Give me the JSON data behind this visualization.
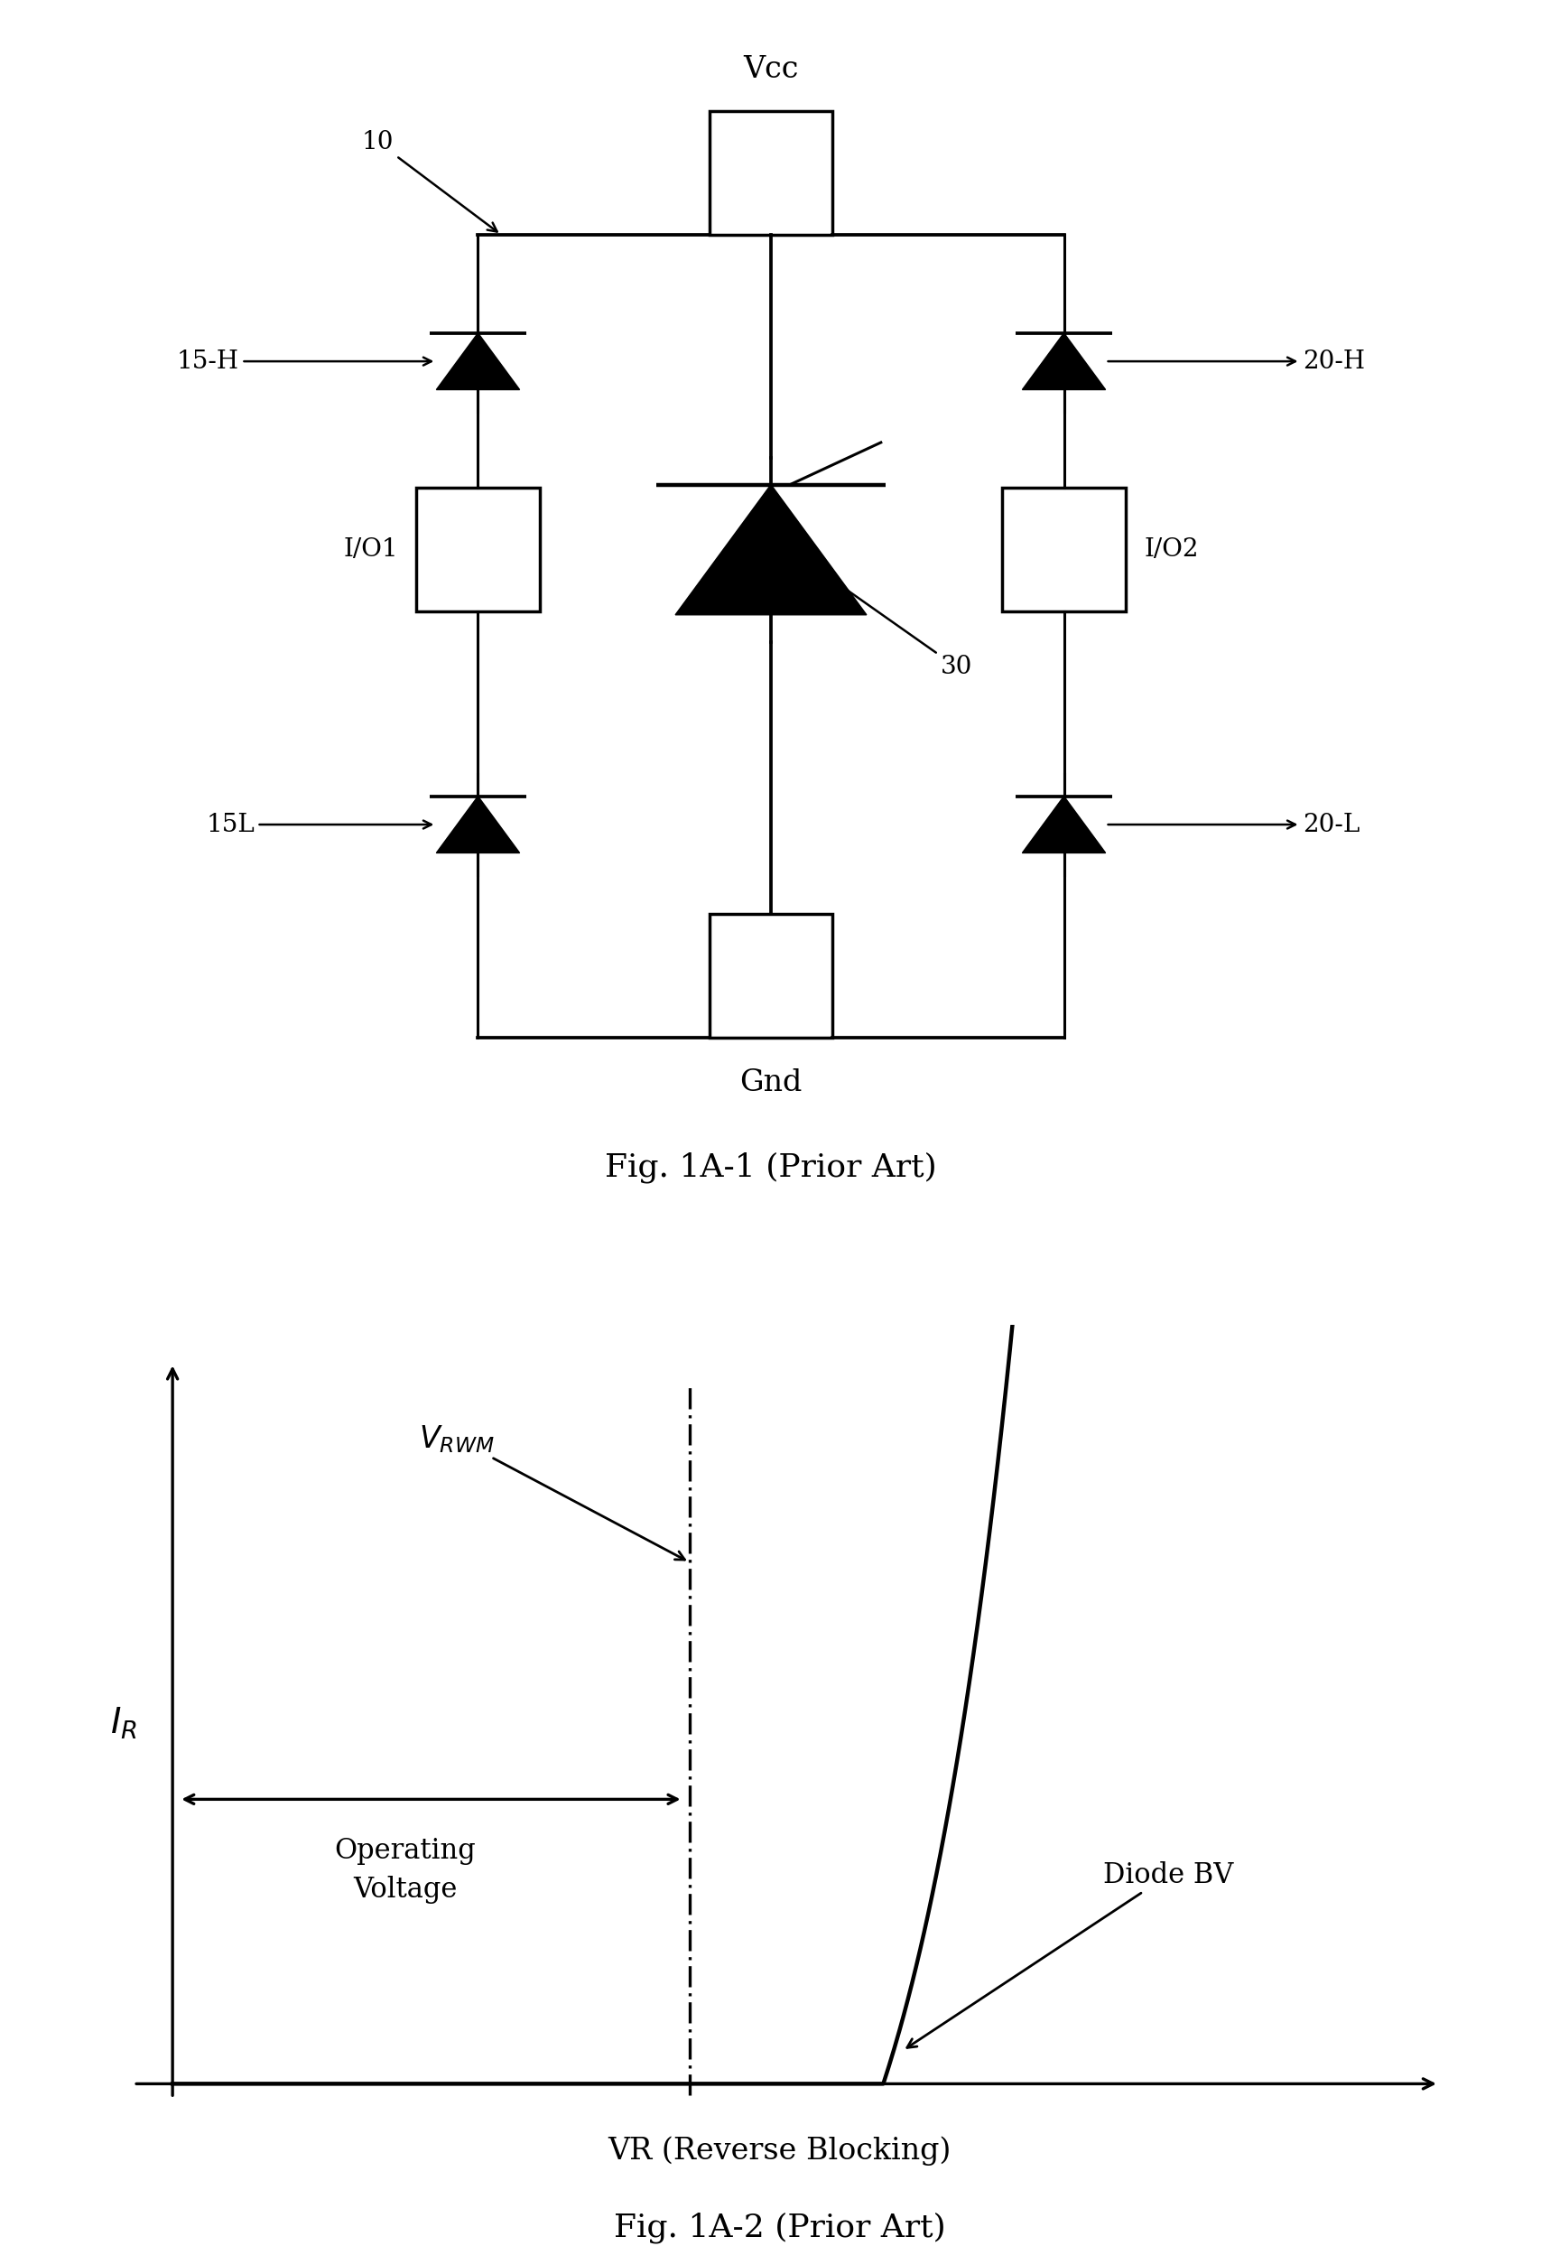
{
  "bg_color": "#ffffff",
  "fig1_title": "Fig. 1A-1 (Prior Art)",
  "fig2_title": "Fig. 1A-2 (Prior Art)",
  "fig2_xlabel": "VR (Reverse Blocking)",
  "lw": 2.2
}
